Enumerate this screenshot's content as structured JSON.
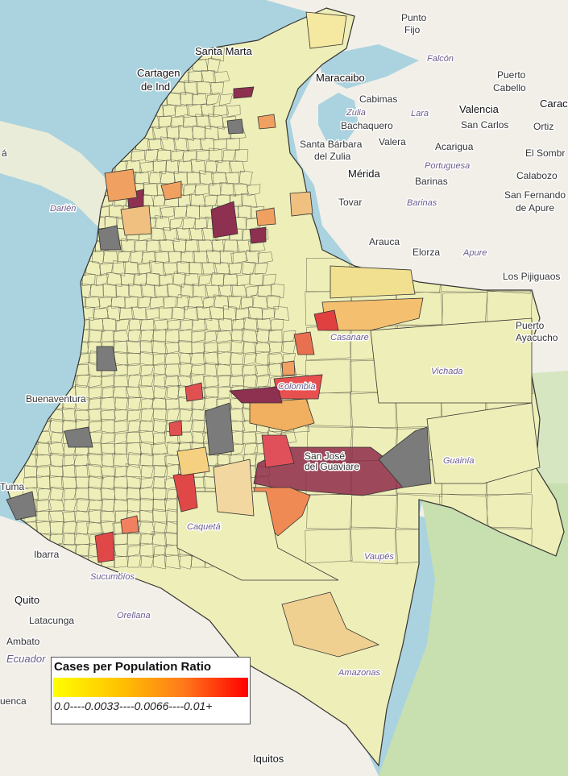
{
  "legend": {
    "title": "Cases per Population Ratio",
    "scale": "0.0----0.0033----0.0066----0.01+",
    "colors": [
      "#ffff00",
      "#ffc400",
      "#ff7a1a",
      "#ff0000"
    ]
  },
  "labels": {
    "punto_fijo_1": "Punto",
    "punto_fijo_2": "Fijo",
    "falcon": "Falcón",
    "santa_marta": "Santa Marta",
    "cartagena_1": "Cartagen",
    "cartagena_2": "de Ind",
    "maracaibo": "Maracaibo",
    "cabimas": "Cabimas",
    "zulia": "Zulia",
    "lara": "Lara",
    "bachaquero": "Bachaquero",
    "valencia": "Valencia",
    "caracas": "Carac",
    "puerto_cabello_1": "Puerto",
    "puerto_cabello_2": "Cabello",
    "san_carlos": "San Carlos",
    "ortiz": "Ortiz",
    "santa_barbara_1": "Santa Bárbara",
    "santa_barbara_2": "del Zulia",
    "valera": "Valera",
    "acarigua": "Acarigua",
    "el_sombrero": "El Sombr",
    "merida": "Mérida",
    "portuguesa": "Portuguesa",
    "calabozo": "Calabozo",
    "barinas_city": "Barinas",
    "barinas_state": "Barinas",
    "san_fernando_1": "San Fernando",
    "san_fernando_2": "de Apure",
    "tovar": "Tovar",
    "darien": "Darién",
    "arauca": "Arauca",
    "elorza": "Elorza",
    "apure": "Apure",
    "los_pijiguaos": "Los Pijiguaos",
    "puerto_ayacucho_1": "Puerto",
    "puerto_ayacucho_2": "Ayacucho",
    "vichada": "Vichada",
    "buenaventura": "Buenaventura",
    "sjg_1": "San José",
    "sjg_2": "del Guaviare",
    "guainia": "Guainía",
    "tumaco": "Tuma",
    "ibarra": "Ibarra",
    "sucumbios": "Sucumbíos",
    "quito": "Quito",
    "latacunga": "Latacunga",
    "orellana": "Orellana",
    "ambato": "Ambato",
    "ecuador": "Ecuador",
    "cuenca": "uenca",
    "amazonas": "Amazonas",
    "iquitos": "Iquitos",
    "caqueta": "Caquetá",
    "vaupes": "Vaupés",
    "casanare": "Casanare",
    "colombia": "Colombia",
    "a_left": "á"
  },
  "colors": {
    "sea": "#aad3df",
    "land": "#f2efe9",
    "forest": "#c8dfb0",
    "border": "#333333",
    "no_data": "#7b7b7b"
  }
}
